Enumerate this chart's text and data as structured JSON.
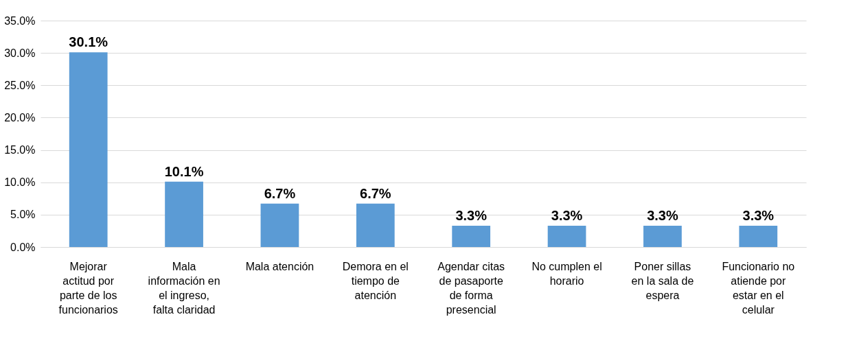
{
  "chart_data": {
    "type": "bar",
    "categories": [
      "Mejorar actitud  por parte de los funcionarios",
      "Mala información en el ingreso, falta claridad",
      "Mala atención",
      "Demora en el tiempo de atención",
      "Agendar citas de pasaporte de forma presencial",
      "No cumplen el horario",
      "Poner sillas en la sala de espera",
      "Funcionario no atiende por estar en el celular"
    ],
    "values": [
      30.1,
      10.1,
      6.7,
      6.7,
      3.3,
      3.3,
      3.3,
      3.3
    ],
    "value_labels": [
      "30.1%",
      "10.1%",
      "6.7%",
      "6.7%",
      "3.3%",
      "3.3%",
      "3.3%",
      "3.3%"
    ],
    "color": "#5b9bd5",
    "ylim": [
      0,
      35
    ],
    "yticks": [
      {
        "value": 0,
        "label": "0.0%"
      },
      {
        "value": 5,
        "label": "5.0%"
      },
      {
        "value": 10,
        "label": "10.0%"
      },
      {
        "value": 15,
        "label": "15.0%"
      },
      {
        "value": 20,
        "label": "20.0%"
      },
      {
        "value": 25,
        "label": "25.0%"
      },
      {
        "value": 30,
        "label": "30.0%"
      },
      {
        "value": 35,
        "label": "35.0%"
      }
    ],
    "grid": "y"
  }
}
